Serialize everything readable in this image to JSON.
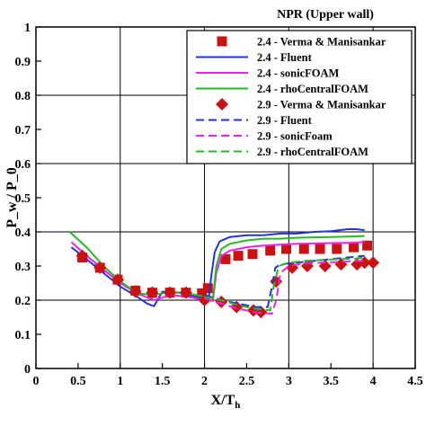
{
  "chart_data": {
    "type": "line",
    "title": "",
    "xlabel": "X/T_h",
    "ylabel": "P_w / P_0",
    "xlim": [
      0,
      4.5
    ],
    "ylim": [
      0,
      1
    ],
    "xticks": [
      "0",
      "0.5",
      "1",
      "1.5",
      "2",
      "2.5",
      "3",
      "3.5",
      "4",
      "4.5"
    ],
    "yticks": [
      "0",
      "0.1",
      "0.2",
      "0.3",
      "0.4",
      "0.5",
      "0.6",
      "0.7",
      "0.8",
      "0.9",
      "1"
    ],
    "grid": true,
    "legend_title": "NPR (Upper wall)",
    "legend_placement": "top-right",
    "series": [
      {
        "name": "2.4 - Verma & Manisankar",
        "kind": "marker",
        "marker": "square",
        "color": "#cc1111",
        "x": [
          0.55,
          0.76,
          0.97,
          1.18,
          1.38,
          1.59,
          1.78,
          1.97,
          2.04,
          2.25,
          2.4,
          2.57,
          2.78,
          2.97,
          3.18,
          3.37,
          3.57,
          3.77,
          3.93
        ],
        "y": [
          0.325,
          0.295,
          0.26,
          0.228,
          0.222,
          0.222,
          0.222,
          0.22,
          0.235,
          0.32,
          0.33,
          0.335,
          0.345,
          0.35,
          0.35,
          0.35,
          0.35,
          0.355,
          0.36
        ]
      },
      {
        "name": "2.4 - Fluent",
        "kind": "line",
        "dash": "solid",
        "color": "#2233dd",
        "x": [
          0.42,
          0.6,
          0.8,
          1.0,
          1.2,
          1.32,
          1.4,
          1.5,
          1.7,
          1.9,
          2.05,
          2.08,
          2.12,
          2.18,
          2.3,
          2.5,
          2.7,
          2.9,
          3.1,
          3.3,
          3.5,
          3.7,
          3.8,
          3.9
        ],
        "y": [
          0.355,
          0.32,
          0.28,
          0.24,
          0.21,
          0.19,
          0.182,
          0.225,
          0.222,
          0.21,
          0.205,
          0.27,
          0.34,
          0.372,
          0.385,
          0.39,
          0.39,
          0.395,
          0.395,
          0.4,
          0.402,
          0.408,
          0.408,
          0.405
        ]
      },
      {
        "name": "2.4 - sonicFOAM",
        "kind": "line",
        "dash": "solid",
        "color": "#ee22ee",
        "x": [
          0.42,
          0.6,
          0.8,
          1.0,
          1.2,
          1.4,
          1.6,
          1.8,
          2.0,
          2.1,
          2.14,
          2.2,
          2.3,
          2.5,
          2.7,
          2.9,
          3.1,
          3.3,
          3.5,
          3.7,
          3.9
        ],
        "y": [
          0.37,
          0.33,
          0.29,
          0.25,
          0.22,
          0.2,
          0.215,
          0.21,
          0.2,
          0.198,
          0.28,
          0.33,
          0.345,
          0.355,
          0.36,
          0.363,
          0.365,
          0.366,
          0.367,
          0.368,
          0.37
        ]
      },
      {
        "name": "2.4 - rhoCentralFOAM",
        "kind": "line",
        "dash": "solid",
        "color": "#22bb22",
        "x": [
          0.4,
          0.6,
          0.8,
          1.0,
          1.2,
          1.4,
          1.6,
          1.8,
          2.0,
          2.1,
          2.14,
          2.2,
          2.3,
          2.5,
          2.7,
          2.9,
          3.1,
          3.3,
          3.5,
          3.7,
          3.9
        ],
        "y": [
          0.4,
          0.355,
          0.3,
          0.255,
          0.22,
          0.215,
          0.225,
          0.22,
          0.21,
          0.205,
          0.3,
          0.35,
          0.365,
          0.375,
          0.38,
          0.38,
          0.383,
          0.384,
          0.385,
          0.386,
          0.388
        ]
      },
      {
        "name": "2.9 - Verma & Manisankar",
        "kind": "marker",
        "marker": "diamond",
        "color": "#cc1111",
        "x": [
          0.55,
          0.76,
          0.97,
          1.18,
          1.38,
          1.59,
          1.78,
          2.0,
          2.2,
          2.38,
          2.58,
          2.67,
          2.85,
          3.04,
          3.22,
          3.43,
          3.62,
          3.81,
          3.9,
          4.0
        ],
        "y": [
          0.33,
          0.295,
          0.26,
          0.225,
          0.222,
          0.222,
          0.222,
          0.2,
          0.195,
          0.18,
          0.17,
          0.165,
          0.255,
          0.295,
          0.3,
          0.3,
          0.305,
          0.305,
          0.31,
          0.31
        ]
      },
      {
        "name": "2.9 - Fluent",
        "kind": "line",
        "dash": "dashed",
        "color": "#2233dd",
        "x": [
          2.0,
          2.2,
          2.4,
          2.6,
          2.75,
          2.8,
          2.84,
          2.9,
          3.1,
          3.3,
          3.5,
          3.7,
          3.9
        ],
        "y": [
          0.215,
          0.2,
          0.19,
          0.18,
          0.18,
          0.24,
          0.295,
          0.305,
          0.31,
          0.315,
          0.32,
          0.325,
          0.33
        ]
      },
      {
        "name": "2.9 - sonicFoam",
        "kind": "line",
        "dash": "dashed",
        "color": "#ee22ee",
        "x": [
          2.0,
          2.2,
          2.4,
          2.6,
          2.8,
          2.85,
          2.9,
          3.0,
          3.2,
          3.4,
          3.6,
          3.8,
          3.9
        ],
        "y": [
          0.205,
          0.19,
          0.175,
          0.165,
          0.16,
          0.2,
          0.28,
          0.3,
          0.308,
          0.31,
          0.312,
          0.315,
          0.315
        ]
      },
      {
        "name": "2.9 - rhoCentralFOAM",
        "kind": "line",
        "dash": "dashed",
        "color": "#22bb22",
        "x": [
          2.0,
          2.2,
          2.4,
          2.6,
          2.78,
          2.82,
          2.88,
          3.0,
          3.2,
          3.4,
          3.6,
          3.8,
          3.9
        ],
        "y": [
          0.21,
          0.2,
          0.185,
          0.175,
          0.17,
          0.24,
          0.3,
          0.31,
          0.315,
          0.318,
          0.32,
          0.322,
          0.325
        ]
      }
    ]
  }
}
